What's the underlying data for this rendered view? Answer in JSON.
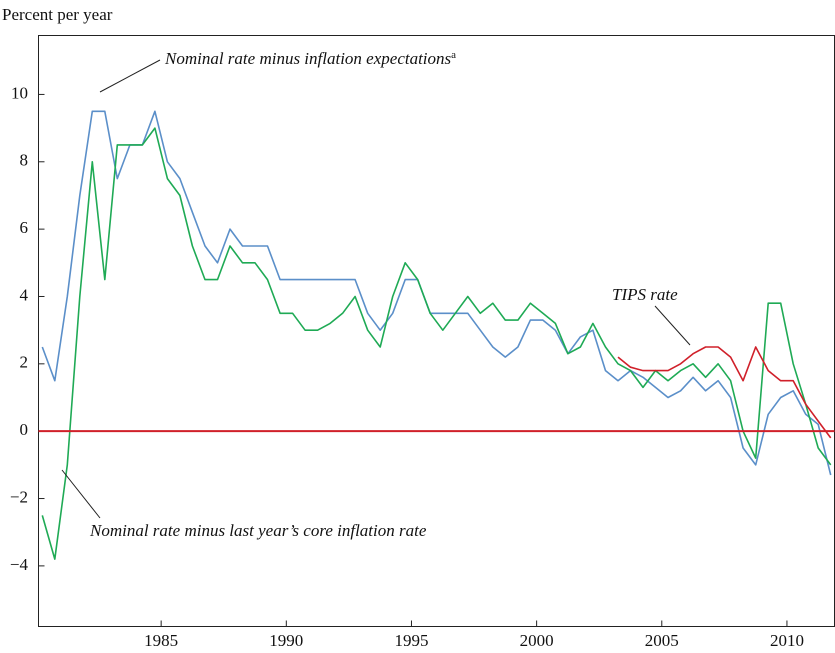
{
  "chart_data": {
    "type": "line",
    "y_label": "Percent per year",
    "xlim": [
      1980.1,
      2011.9
    ],
    "xticks": [
      1985,
      1990,
      1995,
      2000,
      2005,
      2010
    ],
    "ylim": [
      -5.8,
      11.75
    ],
    "yticks": [
      {
        "value": -4,
        "label": "−4"
      },
      {
        "value": -2,
        "label": "−2"
      },
      0,
      2,
      4,
      6,
      8,
      10
    ],
    "x": [
      1980.25,
      1980.75,
      1981.25,
      1981.75,
      1982.25,
      1982.75,
      1983.25,
      1983.75,
      1984.25,
      1984.75,
      1985.25,
      1985.75,
      1986.25,
      1986.75,
      1987.25,
      1987.75,
      1988.25,
      1988.75,
      1989.25,
      1989.75,
      1990.25,
      1990.75,
      1991.25,
      1991.75,
      1992.25,
      1992.75,
      1993.25,
      1993.75,
      1994.25,
      1994.75,
      1995.25,
      1995.75,
      1996.25,
      1996.75,
      1997.25,
      1997.75,
      1998.25,
      1998.75,
      1999.25,
      1999.75,
      2000.25,
      2000.75,
      2001.25,
      2001.75,
      2002.25,
      2002.75,
      2003.25,
      2003.75,
      2004.25,
      2004.75,
      2005.25,
      2005.75,
      2006.25,
      2006.75,
      2007.25,
      2007.75,
      2008.25,
      2008.75,
      2009.25,
      2009.75,
      2010.25,
      2010.75,
      2011.25,
      2011.75
    ],
    "series": [
      {
        "color": "#5b8fc9",
        "values": [
          2.5,
          1.5,
          4,
          7,
          9.5,
          9.5,
          7.5,
          8.5,
          8.5,
          9.5,
          8,
          7.5,
          6.5,
          5.5,
          5,
          6,
          5.5,
          5.5,
          5.5,
          4.5,
          4.5,
          4.5,
          4.5,
          4.5,
          4.5,
          4.5,
          3.5,
          3,
          3.5,
          4.5,
          4.5,
          3.5,
          3.5,
          3.5,
          3.5,
          3,
          2.5,
          2.2,
          2.5,
          3.3,
          3.3,
          3,
          2.3,
          2.8,
          3,
          1.8,
          1.5,
          1.8,
          1.6,
          1.3,
          1,
          1.2,
          1.6,
          1.2,
          1.5,
          1,
          -0.5,
          -1,
          0.5,
          1,
          1.2,
          0.5,
          0.2,
          -1.3
        ]
      },
      {
        "color": "#1faa55",
        "values": [
          -2.5,
          -3.8,
          -1,
          4,
          8,
          4.5,
          8.5,
          8.5,
          8.5,
          9,
          7.5,
          7,
          5.5,
          4.5,
          4.5,
          5.5,
          5,
          5,
          4.5,
          3.5,
          3.5,
          3,
          3,
          3.2,
          3.5,
          4,
          3,
          2.5,
          4,
          5,
          4.5,
          3.5,
          3,
          3.5,
          4,
          3.5,
          3.8,
          3.3,
          3.3,
          3.8,
          3.5,
          3.2,
          2.3,
          2.5,
          3.2,
          2.5,
          2,
          1.8,
          1.3,
          1.8,
          1.5,
          1.8,
          2,
          1.6,
          2,
          1.5,
          0,
          -0.8,
          3.8,
          3.8,
          2,
          0.8,
          -0.5,
          -1
        ]
      },
      {
        "color": "#d0202a",
        "values": [
          null,
          null,
          null,
          null,
          null,
          null,
          null,
          null,
          null,
          null,
          null,
          null,
          null,
          null,
          null,
          null,
          null,
          null,
          null,
          null,
          null,
          null,
          null,
          null,
          null,
          null,
          null,
          null,
          null,
          null,
          null,
          null,
          null,
          null,
          null,
          null,
          null,
          null,
          null,
          null,
          null,
          null,
          null,
          null,
          null,
          null,
          2.2,
          1.9,
          1.8,
          1.8,
          1.8,
          2,
          2.3,
          2.5,
          2.5,
          2.2,
          1.5,
          2.5,
          1.8,
          1.5,
          1.5,
          0.8,
          0.3,
          -0.2
        ]
      }
    ],
    "reference_line": {
      "value": 0,
      "color": "#d0202a"
    },
    "annotations": [
      {
        "text": "Nominal rate minus inflation expectations",
        "superscript": "a",
        "series": 0
      },
      {
        "text": "TIPS rate",
        "series": 2
      },
      {
        "text": "Nominal rate minus last year’s core inflation rate",
        "series": 1
      }
    ]
  }
}
